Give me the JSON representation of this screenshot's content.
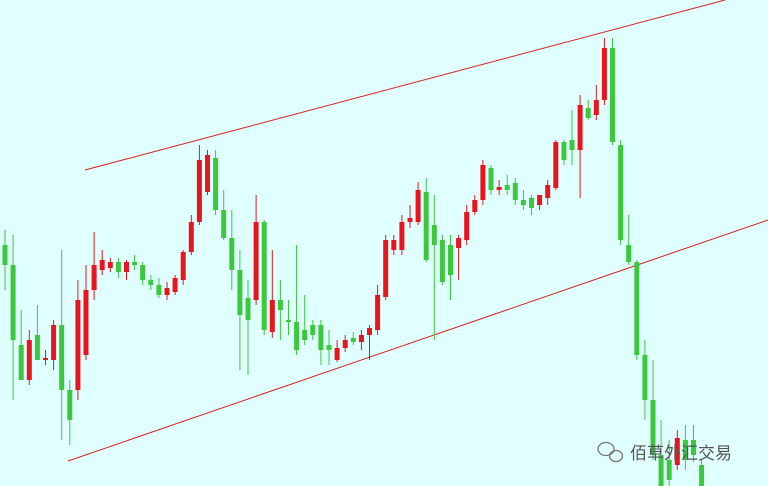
{
  "chart_data": {
    "type": "candlestick",
    "open": [
      255,
      235,
      155,
      120,
      165,
      140,
      140,
      175,
      110,
      110,
      145,
      210,
      230,
      232,
      238,
      228,
      238,
      235,
      220,
      215,
      205,
      208,
      220,
      248,
      278,
      308,
      342,
      290,
      262,
      230,
      202,
      200,
      278,
      168,
      200,
      180,
      178,
      170,
      175,
      175,
      155,
      140,
      152,
      162,
      158,
      165,
      170,
      203,
      250,
      250,
      278,
      278,
      308,
      275,
      260,
      255,
      252,
      260,
      288,
      300,
      332,
      310,
      315,
      317,
      300,
      302,
      295,
      302,
      312,
      358,
      360,
      350,
      392,
      385,
      400,
      452,
      355,
      255,
      238,
      145,
      100,
      45,
      40,
      35,
      60,
      60,
      35
    ],
    "high": [
      270,
      265,
      190,
      170,
      195,
      150,
      180,
      250,
      120,
      220,
      235,
      268,
      250,
      242,
      242,
      240,
      245,
      238,
      225,
      222,
      218,
      225,
      250,
      285,
      355,
      350,
      350,
      310,
      290,
      250,
      220,
      305,
      280,
      250,
      220,
      200,
      255,
      205,
      180,
      180,
      170,
      160,
      165,
      168,
      170,
      175,
      215,
      265,
      265,
      285,
      295,
      318,
      322,
      305,
      265,
      265,
      265,
      295,
      305,
      340,
      335,
      320,
      325,
      322,
      310,
      305,
      305,
      320,
      360,
      360,
      390,
      405,
      400,
      415,
      462,
      462,
      360,
      285,
      240,
      160,
      140,
      80,
      60,
      70,
      75,
      75,
      40
    ],
    "low": [
      210,
      100,
      120,
      115,
      140,
      135,
      130,
      60,
      55,
      100,
      140,
      200,
      225,
      228,
      222,
      220,
      230,
      215,
      210,
      202,
      200,
      205,
      215,
      245,
      275,
      305,
      285,
      260,
      210,
      130,
      125,
      195,
      165,
      162,
      160,
      165,
      145,
      155,
      160,
      135,
      135,
      138,
      148,
      155,
      150,
      140,
      165,
      200,
      245,
      245,
      272,
      275,
      238,
      160,
      215,
      200,
      220,
      255,
      285,
      295,
      305,
      305,
      305,
      295,
      290,
      285,
      290,
      295,
      310,
      335,
      335,
      302,
      380,
      380,
      395,
      355,
      255,
      235,
      140,
      80,
      40,
      14,
      14,
      30,
      30,
      38,
      14
    ],
    "close": [
      235,
      160,
      120,
      160,
      140,
      142,
      175,
      110,
      80,
      200,
      210,
      235,
      240,
      238,
      228,
      238,
      235,
      220,
      215,
      205,
      212,
      222,
      248,
      278,
      340,
      345,
      290,
      262,
      230,
      185,
      180,
      278,
      170,
      200,
      190,
      178,
      150,
      160,
      165,
      150,
      150,
      152,
      160,
      158,
      165,
      172,
      205,
      260,
      260,
      278,
      282,
      310,
      240,
      255,
      218,
      225,
      262,
      288,
      300,
      335,
      310,
      313,
      310,
      300,
      295,
      292,
      305,
      315,
      358,
      340,
      350,
      395,
      382,
      400,
      452,
      358,
      260,
      238,
      145,
      100,
      45,
      14,
      20,
      62,
      40,
      45,
      14
    ],
    "up_color": "#e8141e",
    "down_color": "#3cc83c",
    "ylim": [
      14,
      500
    ],
    "annotations": [
      "佰草外汇交易"
    ]
  }
}
